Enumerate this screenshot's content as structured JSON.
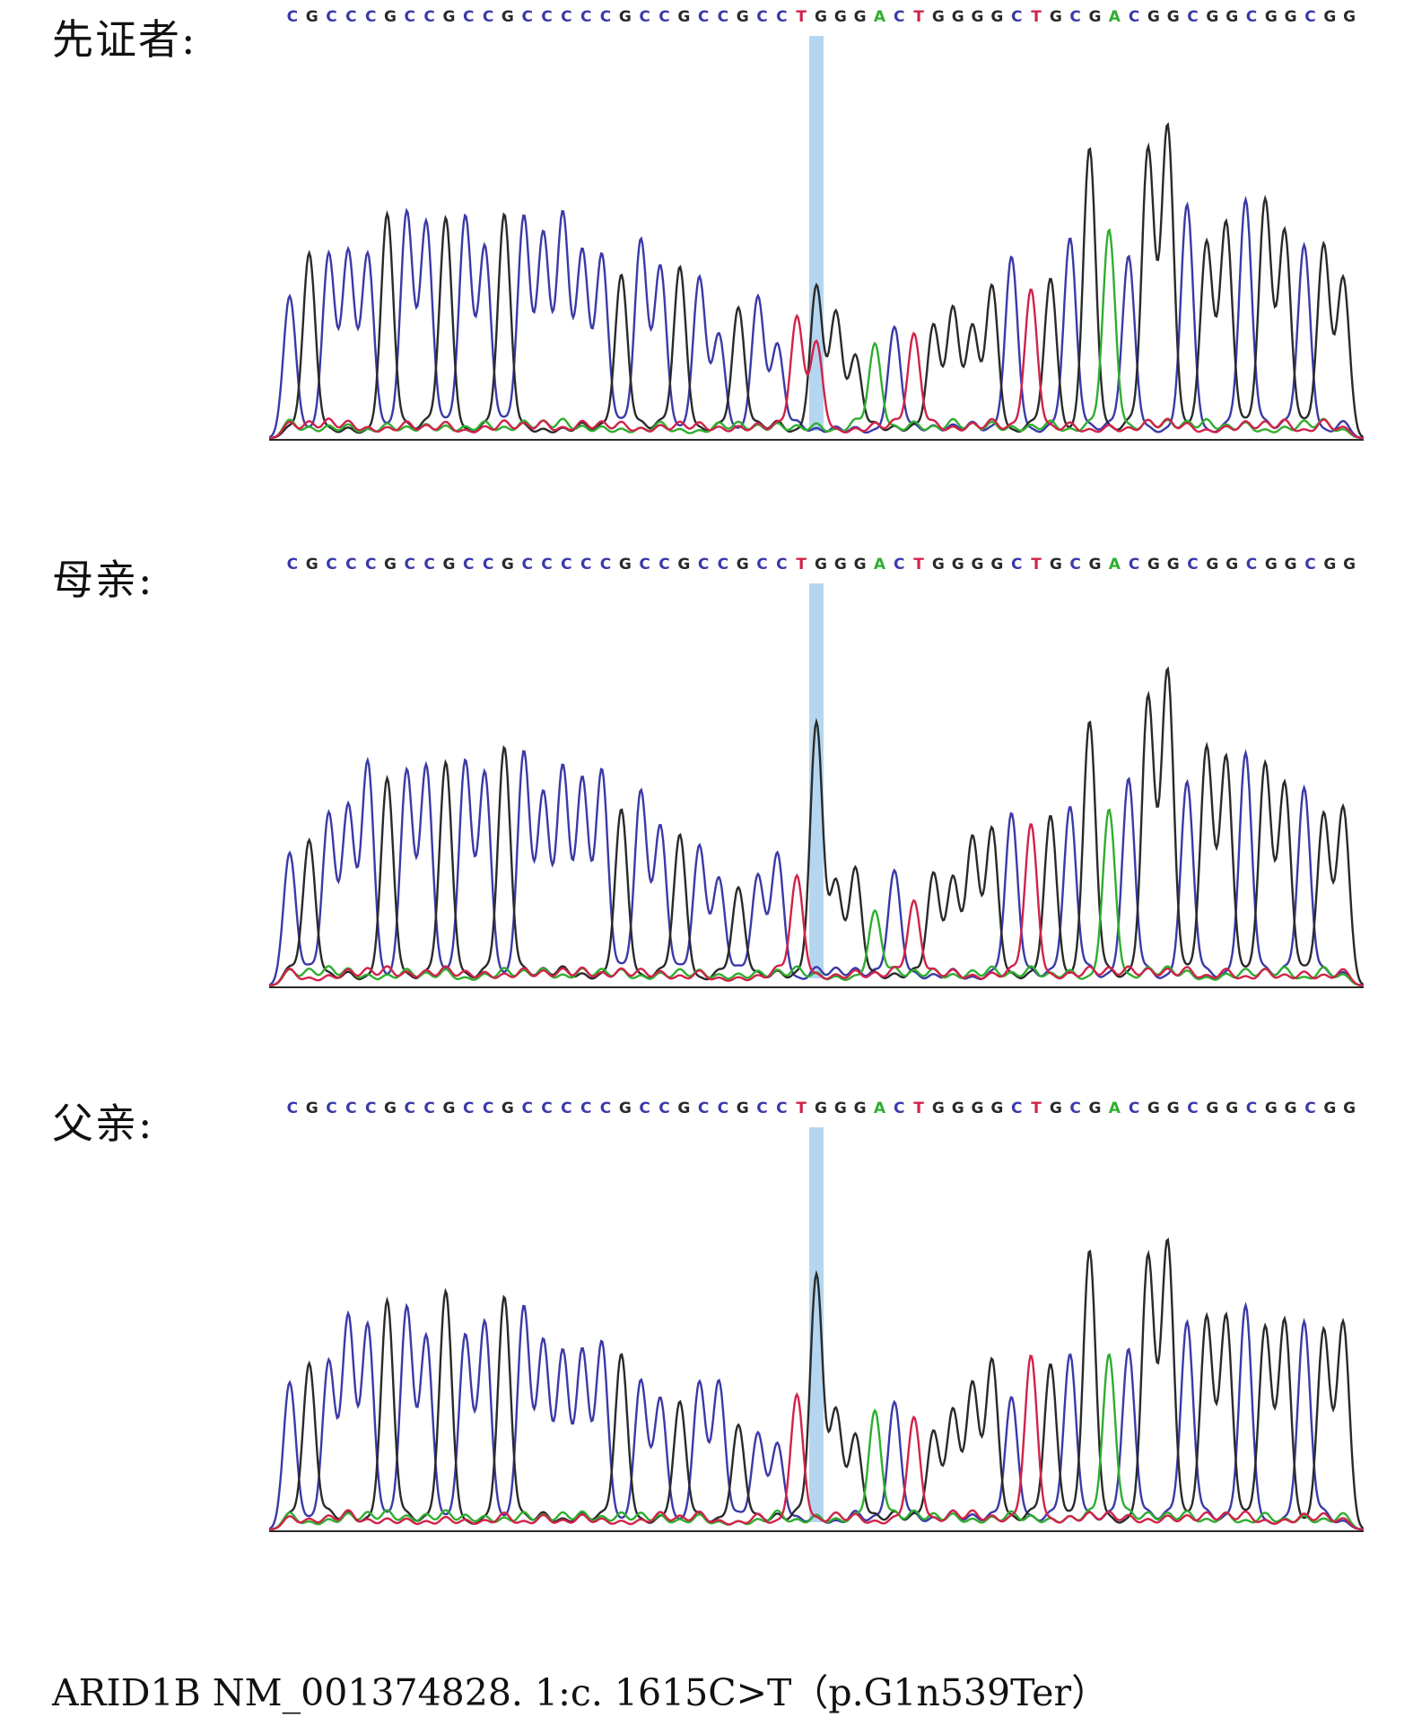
{
  "panels": [
    {
      "label": "先证者:",
      "sequence": "CGCCCGCCGCCGCCCCCGCCGCCGCCTGGGACTGGGGCTGCGACGGCGGCGGCGG",
      "peak_scale": 1.0,
      "marker_peak": 0.55
    },
    {
      "label": "母亲:",
      "sequence": "CGCCCGCCGCCGCCCCCGCCGCCGCCTGGGACTGGGGCTGCGACGGCGGCGGCGG",
      "peak_scale": 1.0,
      "marker_peak": 0.95
    },
    {
      "label": "父亲:",
      "sequence": "CGCCCGCCGCCGCCCCCGCCGCCGCCTGGGACTGGGGCTGCGACGGCGGCGGCGG",
      "peak_scale": 1.0,
      "marker_peak": 0.92
    }
  ],
  "marker_index": 27,
  "base_colors": {
    "C": "#3a3aa8",
    "G": "#2a2a2a",
    "A": "#2fae2f",
    "T": "#d0234a"
  },
  "highlight_color": "#b5d6f0",
  "caption": "ARID1B NM_001374828. 1:c. 1615C>T（p.G1n539Ter）"
}
